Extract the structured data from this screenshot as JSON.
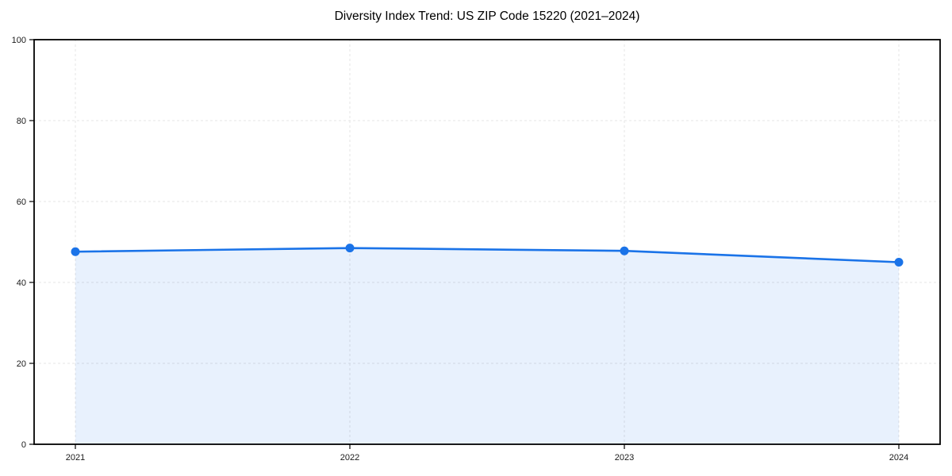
{
  "chart_data": {
    "type": "line",
    "title": "Diversity Index Trend: US ZIP Code 15220 (2021–2024)",
    "categories": [
      "2021",
      "2022",
      "2023",
      "2024"
    ],
    "series": [
      {
        "name": "Diversity Index",
        "values": [
          47.6,
          48.5,
          47.8,
          45.0
        ]
      }
    ],
    "xlabel": "",
    "ylabel": "",
    "ylim": [
      0,
      100
    ],
    "yticks": [
      0,
      20,
      40,
      60,
      80,
      100
    ],
    "grid": true,
    "grid_style": "dashed",
    "legend": false,
    "area_fill": true,
    "colors": {
      "line": "#1a73e8",
      "marker": "#1a73e8",
      "area": "rgba(26,115,232,0.10)",
      "gridline": "#e4e4e4",
      "frame": "#000000",
      "tick_text": "#1a1a1a"
    }
  }
}
